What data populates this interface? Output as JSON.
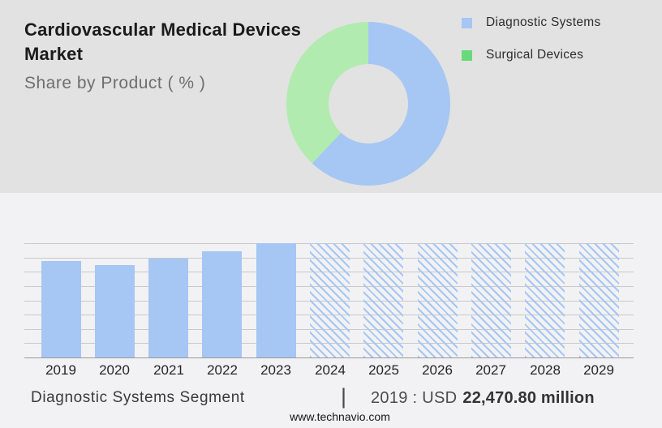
{
  "header": {
    "title_line1": "Cardiovascular Medical Devices",
    "title_line2": "Market",
    "subtitle": "Share by Product ( % )"
  },
  "legend": {
    "items": [
      {
        "label": "Diagnostic Systems",
        "color": "#a6c6f4"
      },
      {
        "label": "Surgical Devices",
        "color": "#69da7b"
      }
    ]
  },
  "chart_data": [
    {
      "type": "pie",
      "donut": true,
      "title": "Share by Product ( % )",
      "labels": [
        "Diagnostic Systems",
        "Surgical Devices"
      ],
      "values": [
        62,
        38
      ],
      "unit": "%",
      "colors": [
        "#a6c6f4",
        "#b2ebb0"
      ],
      "start_angle_deg": 0,
      "legend_position": "top-right",
      "note": "percent values not labeled in image; estimated from slice angles"
    },
    {
      "type": "bar",
      "title": "Diagnostic Systems Segment",
      "categories": [
        "2019",
        "2020",
        "2021",
        "2022",
        "2023",
        "2024",
        "2025",
        "2026",
        "2027",
        "2028",
        "2029"
      ],
      "series": [
        {
          "name": "Diagnostic Systems",
          "values": [
            22470.8,
            21500,
            23000,
            24700,
            26620,
            26620,
            26620,
            26620,
            26620,
            26620,
            26620
          ],
          "styles": [
            "solid",
            "solid",
            "solid",
            "solid",
            "solid",
            "hatched",
            "hatched",
            "hatched",
            "hatched",
            "hatched",
            "hatched"
          ]
        }
      ],
      "unit": "USD million",
      "ylim": [
        0,
        26620
      ],
      "gridline_count": 9,
      "grid": true,
      "bar_color": "#a6c6f4",
      "labeled_value": {
        "category": "2019",
        "text": "2019 : USD 22,470.80 million"
      },
      "note": "only 2019 value labeled; other values estimated from bar heights; 2024-2029 are hatched forecast bars drawn to chart top"
    }
  ],
  "footer": {
    "segment_label": "Diagnostic Systems Segment",
    "separator": "|",
    "value_prefix": "2019 : USD",
    "value_bold": "22,470.80 million",
    "website": "www.technavio.com"
  },
  "colors": {
    "top_background": "#e2e2e2",
    "bottom_background": "#f2f2f4",
    "gridline": "#c9c9c9",
    "baseline": "#9a9a9a",
    "hatch_line": "#a6c6f4"
  }
}
